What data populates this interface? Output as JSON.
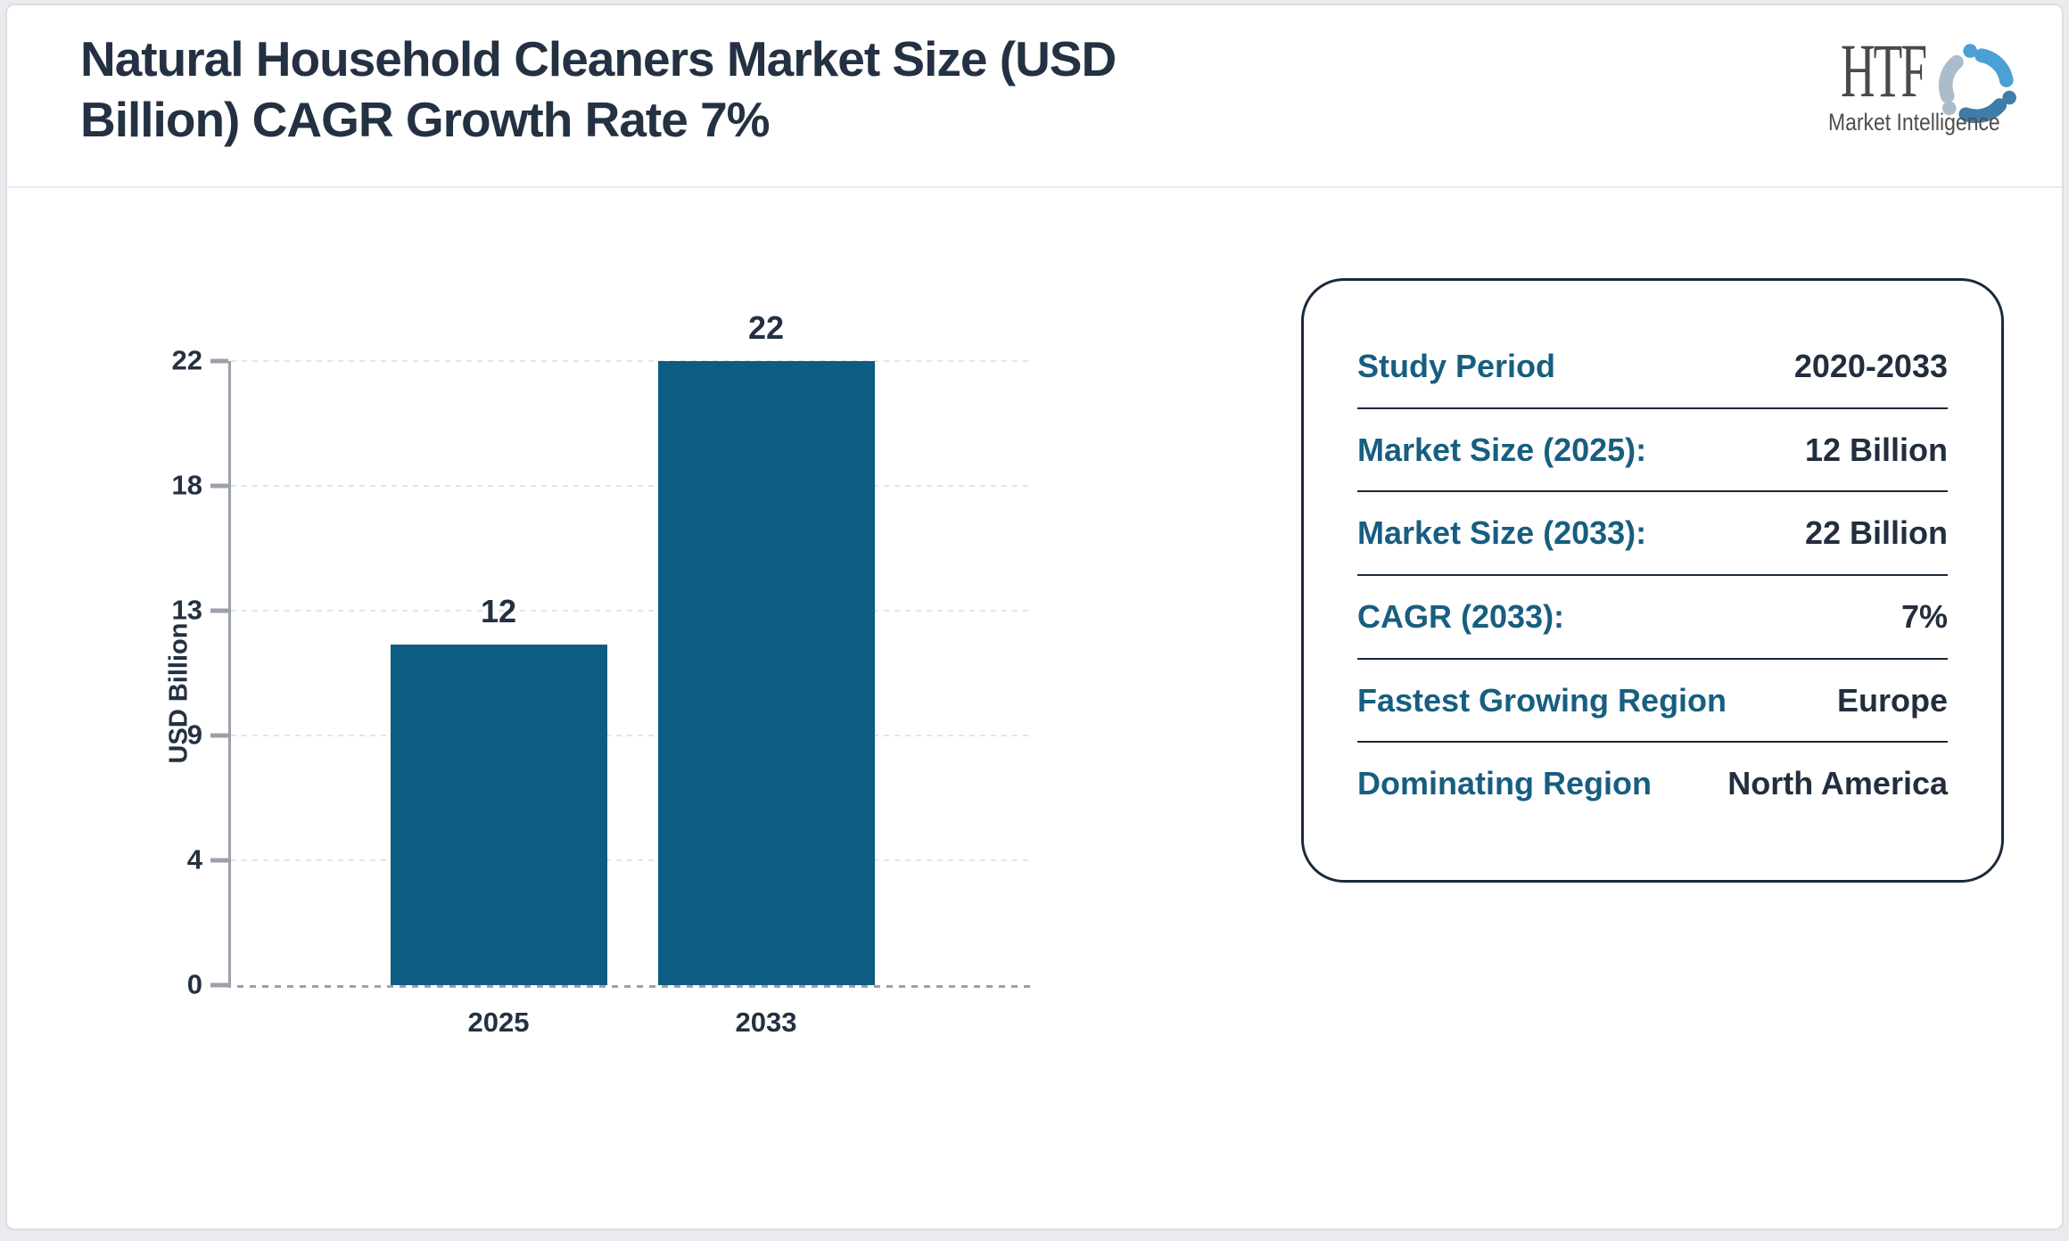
{
  "header": {
    "title_line1": "Natural Household Cleaners Market Size (USD",
    "title_line2": "Billion) CAGR Growth Rate 7%",
    "logo": {
      "text": "HTF",
      "subtext": "Market Intelligence",
      "colors": [
        "#4ba0d4",
        "#3e7da8",
        "#abbdca"
      ]
    }
  },
  "chart_data": {
    "type": "bar",
    "title": "Natural Household Cleaners Market Size (USD Billion) CAGR Growth Rate 7%",
    "categories": [
      "2025",
      "2033"
    ],
    "values": [
      12,
      22
    ],
    "xlabel": "",
    "ylabel": "USD Billion",
    "ylim": [
      0,
      22
    ],
    "yticks": {
      "labels": [
        "0",
        "4",
        "9",
        "13",
        "18",
        "22"
      ],
      "fractions": [
        0,
        0.2,
        0.4,
        0.6,
        0.8,
        1
      ]
    },
    "bar_color": "#0d5c82",
    "grid": "horizontal-dashed",
    "legend": "none"
  },
  "info_card": {
    "label_color": "#175e80",
    "value_color": "#222e3e",
    "rows": [
      {
        "label": "Study Period",
        "value": "2020-2033"
      },
      {
        "label": "Market Size (2025):",
        "value": "12 Billion"
      },
      {
        "label": "Market Size (2033):",
        "value": "22 Billion"
      },
      {
        "label": "CAGR (2033):",
        "value": "7%"
      },
      {
        "label": "Fastest Growing Region",
        "value": "Europe"
      },
      {
        "label": "Dominating Region",
        "value": "North America"
      }
    ]
  }
}
